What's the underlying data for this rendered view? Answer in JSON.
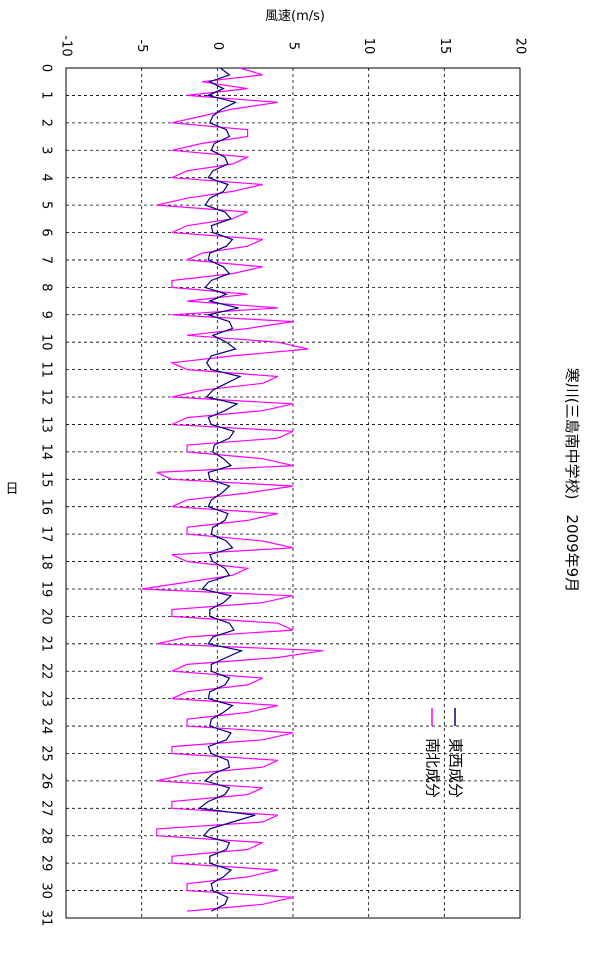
{
  "chart_data": {
    "type": "line",
    "title": "寒川(三島南中学校)　2009年9月",
    "x_label": "日",
    "y_label": "風速(m/s)",
    "xlim": [
      0,
      31
    ],
    "ylim": [
      -10,
      20
    ],
    "xticks": [
      0,
      1,
      2,
      3,
      4,
      5,
      6,
      7,
      8,
      9,
      10,
      11,
      12,
      13,
      14,
      15,
      16,
      17,
      18,
      19,
      20,
      21,
      22,
      23,
      24,
      25,
      26,
      27,
      28,
      29,
      30,
      31
    ],
    "yticks": [
      -10,
      -5,
      0,
      5,
      10,
      15,
      20
    ],
    "grid": true,
    "legend": "lower-right",
    "x": [
      0,
      0.25,
      0.5,
      0.75,
      1,
      1.25,
      1.5,
      1.75,
      2,
      2.25,
      2.5,
      2.75,
      3,
      3.25,
      3.5,
      3.75,
      4,
      4.25,
      4.5,
      4.75,
      5,
      5.25,
      5.5,
      5.75,
      6,
      6.25,
      6.5,
      6.75,
      7,
      7.25,
      7.5,
      7.75,
      8,
      8.25,
      8.5,
      8.75,
      9,
      9.25,
      9.5,
      9.75,
      10,
      10.25,
      10.5,
      10.75,
      11,
      11.25,
      11.5,
      11.75,
      12,
      12.25,
      12.5,
      12.75,
      13,
      13.25,
      13.5,
      13.75,
      14,
      14.25,
      14.5,
      14.75,
      15,
      15.25,
      15.5,
      15.75,
      16,
      16.25,
      16.5,
      16.75,
      17,
      17.25,
      17.5,
      17.75,
      18,
      18.25,
      18.5,
      18.75,
      19,
      19.25,
      19.5,
      19.75,
      20,
      20.25,
      20.5,
      20.75,
      21,
      21.25,
      21.5,
      21.75,
      22,
      22.25,
      22.5,
      22.75,
      23,
      23.25,
      23.5,
      23.75,
      24,
      24.25,
      24.5,
      24.75,
      25,
      25.25,
      25.5,
      25.75,
      26,
      26.25,
      26.5,
      26.75,
      27,
      27.25,
      27.5,
      27.75,
      28,
      28.25,
      28.5,
      28.75,
      29,
      29.25,
      29.5,
      29.75,
      30,
      30.25,
      30.5,
      30.75
    ],
    "series": [
      {
        "name": "東西成分",
        "color": "#000080",
        "values": [
          0.2,
          0.8,
          -0.5,
          0.4,
          -0.6,
          1.2,
          0.3,
          -0.3,
          -0.5,
          0.6,
          0.8,
          -0.2,
          -0.4,
          0.5,
          0.7,
          -0.3,
          -0.6,
          0.7,
          0.4,
          -0.5,
          -0.8,
          0.5,
          0.9,
          -0.4,
          -0.3,
          1,
          0.6,
          -0.5,
          -0.6,
          0.4,
          0.8,
          -0.4,
          -0.8,
          0.6,
          -0.5,
          1.4,
          -0.6,
          0.8,
          1,
          -0.3,
          0.6,
          1.2,
          -0.4,
          -0.7,
          -0.4,
          1.5,
          0.6,
          -0.3,
          -0.7,
          1.3,
          0.5,
          -0.6,
          -0.4,
          1.1,
          0.8,
          -0.2,
          -0.3,
          0.4,
          0.9,
          -0.6,
          -0.5,
          0.8,
          0.3,
          -0.4,
          -0.6,
          0.7,
          0.5,
          -0.3,
          -0.4,
          0.6,
          1,
          -0.5,
          -0.3,
          0.5,
          0.8,
          -0.6,
          -1,
          0.9,
          0.4,
          -0.5,
          -0.5,
          0.8,
          1.1,
          -0.3,
          -0.6,
          1.6,
          0.6,
          -0.4,
          -0.4,
          0.8,
          0.5,
          -0.5,
          -0.6,
          1,
          0.4,
          -0.4,
          -0.5,
          0.9,
          0.6,
          -0.6,
          -0.4,
          0.7,
          0.8,
          -0.3,
          -0.8,
          0.8,
          0.5,
          -0.6,
          -1.2,
          2.5,
          1,
          -0.5,
          -0.9,
          0.8,
          0.6,
          -0.5,
          -0.5,
          0.9,
          0.4,
          -0.4,
          -0.3,
          0.7,
          0.5,
          -0.4
        ]
      },
      {
        "name": "南北成分",
        "color": "#ff00ff",
        "values": [
          1.5,
          3,
          -1,
          2,
          -2,
          4,
          1,
          -1,
          -3,
          2,
          2,
          -1,
          -3,
          2,
          1,
          -2,
          -3,
          3,
          1,
          -2,
          -4,
          2,
          1,
          -2,
          -3,
          3,
          2,
          -1,
          -2,
          3,
          1,
          -3,
          -3,
          2,
          -2,
          4,
          -3,
          5,
          2,
          -2,
          4,
          6,
          1,
          -3,
          -2,
          4,
          3,
          -1,
          -3,
          5,
          3,
          -2,
          -3,
          5,
          4,
          -2,
          -2,
          3,
          5,
          -4,
          -3,
          5,
          2,
          -2,
          -3,
          4,
          2,
          -2,
          -2,
          3,
          5,
          -3,
          -2,
          2,
          1,
          -2,
          -5,
          5,
          3,
          -3,
          -3,
          4,
          5,
          -2,
          -4,
          7,
          4,
          -2,
          -3,
          3,
          2,
          -2,
          -3,
          4,
          2,
          -2,
          -2,
          5,
          3,
          -3,
          -3,
          4,
          3,
          -2,
          -4,
          3,
          2,
          -3,
          -3,
          4,
          3,
          -4,
          -4,
          3,
          2,
          -3,
          -3,
          4,
          2,
          -2,
          -2,
          5,
          3,
          -2
        ]
      }
    ]
  }
}
